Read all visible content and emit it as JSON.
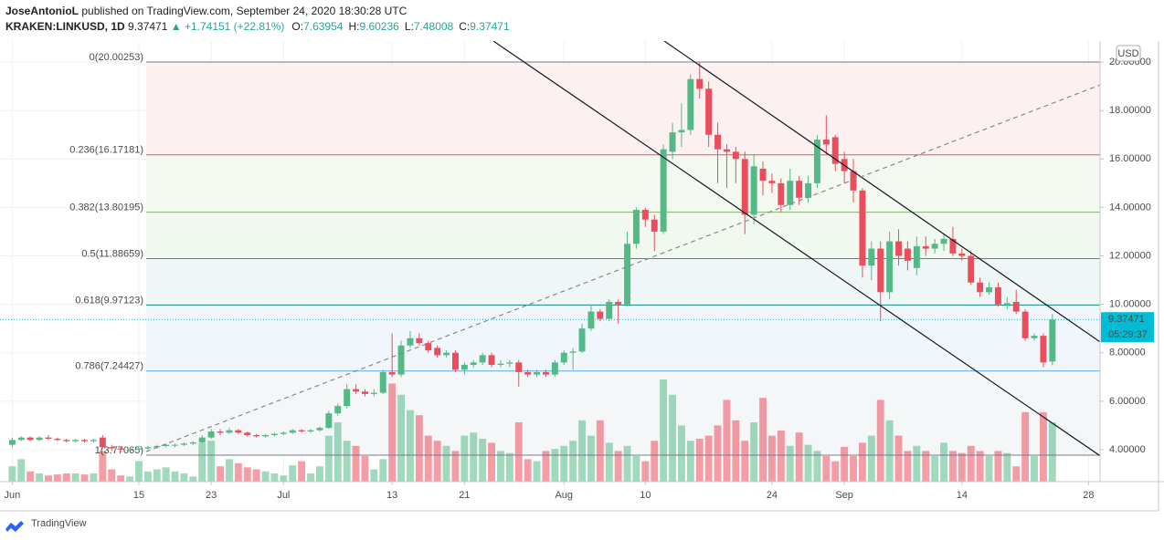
{
  "header": {
    "author": "JoseAntonioL",
    "published": "published on TradingView.com, September 24, 2020 18:30:28 UTC",
    "symbol": "KRAKEN:LINKUSD, 1D",
    "last": "9.37471",
    "change": "▲ +1.74151 (+22.81%)",
    "ohlc": [
      {
        "k": "O:",
        "v": "7.63954"
      },
      {
        "k": "H:",
        "v": "9.60236"
      },
      {
        "k": "L:",
        "v": "7.48008"
      },
      {
        "k": "C:",
        "v": "9.37471"
      }
    ]
  },
  "footer": {
    "brand": "TradingView"
  },
  "chart_data": {
    "type": "candlestick",
    "currency": "USD",
    "xlim": [
      -1.35,
      120.27
    ],
    "ylim": [
      2.68,
      20.87
    ],
    "xticks": [
      {
        "value": 0,
        "label": "Jun"
      },
      {
        "value": 14,
        "label": "15"
      },
      {
        "value": 22,
        "label": "23"
      },
      {
        "value": 30,
        "label": "Jul"
      },
      {
        "value": 42,
        "label": "13"
      },
      {
        "value": 50,
        "label": "21"
      },
      {
        "value": 61,
        "label": "Aug"
      },
      {
        "value": 70,
        "label": "10"
      },
      {
        "value": 84,
        "label": "24"
      },
      {
        "value": 92,
        "label": "Sep"
      },
      {
        "value": 105,
        "label": "14"
      },
      {
        "value": 119,
        "label": "28"
      }
    ],
    "yticks": [
      {
        "value": 4,
        "label": "4.00000"
      },
      {
        "value": 6,
        "label": "6.00000"
      },
      {
        "value": 8,
        "label": "8.00000"
      },
      {
        "value": 10,
        "label": "10.00000"
      },
      {
        "value": 12,
        "label": "12.00000"
      },
      {
        "value": 14,
        "label": "14.00000"
      },
      {
        "value": 16,
        "label": "16.00000"
      },
      {
        "value": 18,
        "label": "18.00000"
      },
      {
        "value": 20,
        "label": "20.00000"
      }
    ],
    "grid": true,
    "up_color": "#53b987",
    "down_color": "#eb4d5c",
    "last_price": {
      "value": 9.37471,
      "label": "9.37471",
      "countdown": "05:29:37",
      "color": "#00bcd4"
    },
    "fib": {
      "levels": [
        {
          "value": 20.00253,
          "label": "0(20.00253)",
          "color": "#787b86"
        },
        {
          "value": 16.17181,
          "label": "0.236(16.17181)",
          "color": "#e0585c"
        },
        {
          "value": 13.80195,
          "label": "0.382(13.80195)",
          "color": "#81b56a"
        },
        {
          "value": 11.88659,
          "label": "0.5(11.88659)",
          "color": "#4a9a3e"
        },
        {
          "value": 9.97123,
          "label": "0.618(9.97123)",
          "color": "#0e8a7c"
        },
        {
          "value": 7.24427,
          "label": "0.786(7.24427)",
          "color": "#5aa9e6"
        },
        {
          "value": 3.77065,
          "label": "1(3.77065)",
          "color": "#787b86"
        }
      ],
      "fills": [
        "#fdf0f0",
        "#f3f9f1",
        "#f1f8ef",
        "#eef7f5",
        "#f0f6fc",
        "#f5f6f8"
      ]
    },
    "trendlines": [
      {
        "points": [
          [
            72.1,
            20.87
          ],
          [
            120.3,
            8.44
          ]
        ],
        "style": "solid",
        "color": "#131722"
      },
      {
        "points": [
          [
            53.2,
            20.87
          ],
          [
            120.3,
            3.74
          ]
        ],
        "style": "solid",
        "color": "#131722"
      },
      {
        "points": [
          [
            14.8,
            3.92
          ],
          [
            120.3,
            19.06
          ]
        ],
        "style": "dashed",
        "color": "#888888"
      }
    ],
    "ohlc": [
      [
        4.2,
        4.5,
        4.1,
        4.4
      ],
      [
        4.4,
        4.55,
        4.35,
        4.5
      ],
      [
        4.5,
        4.55,
        4.35,
        4.4
      ],
      [
        4.4,
        4.55,
        4.35,
        4.5
      ],
      [
        4.5,
        4.6,
        4.4,
        4.45
      ],
      [
        4.45,
        4.5,
        4.35,
        4.4
      ],
      [
        4.4,
        4.45,
        4.3,
        4.35
      ],
      [
        4.35,
        4.45,
        4.3,
        4.4
      ],
      [
        4.4,
        4.45,
        4.3,
        4.35
      ],
      [
        4.35,
        4.45,
        4.3,
        4.4
      ],
      [
        4.5,
        4.6,
        4.05,
        4.1
      ],
      [
        4.1,
        4.2,
        3.95,
        4.05
      ],
      [
        4.05,
        4.1,
        3.9,
        4.0
      ],
      [
        4.0,
        4.1,
        3.95,
        4.0
      ],
      [
        4.0,
        4.15,
        3.95,
        4.05
      ],
      [
        4.05,
        4.15,
        4.0,
        4.1
      ],
      [
        4.1,
        4.2,
        4.05,
        4.15
      ],
      [
        4.15,
        4.25,
        4.1,
        4.2
      ],
      [
        4.2,
        4.25,
        4.1,
        4.2
      ],
      [
        4.2,
        4.3,
        4.15,
        4.25
      ],
      [
        4.25,
        4.35,
        4.2,
        4.3
      ],
      [
        4.3,
        4.6,
        4.25,
        4.5
      ],
      [
        4.5,
        4.85,
        4.45,
        4.75
      ],
      [
        4.75,
        4.85,
        4.6,
        4.7
      ],
      [
        4.7,
        4.9,
        4.65,
        4.8
      ],
      [
        4.8,
        4.85,
        4.65,
        4.7
      ],
      [
        4.7,
        4.75,
        4.55,
        4.6
      ],
      [
        4.6,
        4.65,
        4.5,
        4.55
      ],
      [
        4.55,
        4.65,
        4.5,
        4.6
      ],
      [
        4.6,
        4.7,
        4.55,
        4.65
      ],
      [
        4.65,
        4.75,
        4.6,
        4.7
      ],
      [
        4.7,
        4.85,
        4.65,
        4.8
      ],
      [
        4.8,
        4.85,
        4.7,
        4.75
      ],
      [
        4.75,
        4.85,
        4.7,
        4.8
      ],
      [
        4.8,
        4.95,
        4.75,
        4.9
      ],
      [
        4.9,
        5.6,
        4.85,
        5.5
      ],
      [
        5.5,
        5.9,
        5.4,
        5.8
      ],
      [
        5.8,
        6.7,
        5.7,
        6.5
      ],
      [
        6.5,
        6.7,
        6.3,
        6.4
      ],
      [
        6.4,
        6.5,
        6.2,
        6.3
      ],
      [
        6.3,
        6.5,
        6.2,
        6.35
      ],
      [
        6.35,
        7.3,
        6.3,
        7.2
      ],
      [
        7.2,
        8.8,
        7.0,
        7.1
      ],
      [
        7.1,
        8.5,
        7.0,
        8.3
      ],
      [
        8.3,
        8.9,
        8.2,
        8.6
      ],
      [
        8.6,
        8.8,
        8.3,
        8.4
      ],
      [
        8.4,
        8.5,
        8.0,
        8.1
      ],
      [
        8.2,
        8.3,
        7.8,
        7.9
      ],
      [
        7.9,
        8.1,
        7.8,
        8.0
      ],
      [
        8.0,
        8.1,
        7.2,
        7.3
      ],
      [
        7.3,
        7.6,
        7.1,
        7.5
      ],
      [
        7.5,
        7.7,
        7.4,
        7.6
      ],
      [
        7.6,
        8.0,
        7.5,
        7.9
      ],
      [
        7.9,
        8.0,
        7.4,
        7.5
      ],
      [
        7.5,
        7.7,
        7.4,
        7.55
      ],
      [
        7.55,
        7.7,
        7.4,
        7.6
      ],
      [
        7.6,
        7.7,
        6.6,
        7.2
      ],
      [
        7.2,
        7.3,
        7.0,
        7.1
      ],
      [
        7.1,
        7.3,
        7.0,
        7.2
      ],
      [
        7.2,
        7.3,
        7.0,
        7.1
      ],
      [
        7.1,
        7.7,
        7.0,
        7.6
      ],
      [
        7.6,
        8.1,
        7.5,
        8.0
      ],
      [
        8.0,
        8.2,
        7.3,
        8.05
      ],
      [
        8.05,
        9.2,
        8.0,
        9.0
      ],
      [
        9.0,
        10.0,
        8.9,
        9.7
      ],
      [
        9.7,
        9.8,
        9.3,
        9.4
      ],
      [
        9.4,
        10.2,
        9.3,
        10.1
      ],
      [
        10.1,
        10.2,
        9.2,
        10.0
      ],
      [
        10.0,
        13.0,
        9.9,
        12.5
      ],
      [
        12.5,
        14.0,
        12.3,
        13.9
      ],
      [
        13.9,
        14.0,
        13.2,
        13.5
      ],
      [
        13.5,
        13.7,
        12.2,
        13.0
      ],
      [
        13.0,
        16.6,
        12.9,
        16.4
      ],
      [
        16.3,
        17.5,
        16.0,
        17.1
      ],
      [
        17.1,
        18.3,
        16.5,
        17.2
      ],
      [
        17.2,
        19.5,
        17.0,
        19.3
      ],
      [
        19.3,
        20.0,
        18.5,
        18.9
      ],
      [
        18.9,
        19.2,
        16.5,
        17.0
      ],
      [
        17.0,
        17.5,
        15.0,
        16.4
      ],
      [
        16.4,
        16.6,
        14.8,
        16.3
      ],
      [
        16.3,
        16.5,
        15.0,
        16.0
      ],
      [
        16.0,
        16.3,
        12.9,
        13.7
      ],
      [
        13.7,
        16.2,
        13.3,
        15.7
      ],
      [
        15.6,
        15.9,
        14.5,
        15.1
      ],
      [
        15.1,
        15.4,
        14.6,
        15.0
      ],
      [
        15.0,
        15.2,
        13.8,
        14.1
      ],
      [
        14.1,
        15.6,
        13.9,
        15.1
      ],
      [
        15.1,
        15.3,
        14.1,
        14.4
      ],
      [
        14.4,
        15.3,
        14.2,
        15.0
      ],
      [
        15.0,
        17.0,
        14.8,
        16.8
      ],
      [
        16.8,
        17.8,
        16.2,
        16.6
      ],
      [
        16.9,
        17.0,
        15.5,
        15.8
      ],
      [
        16.0,
        16.3,
        15.0,
        15.5
      ],
      [
        15.5,
        16.0,
        14.2,
        14.7
      ],
      [
        14.7,
        14.8,
        11.1,
        11.6
      ],
      [
        11.6,
        12.6,
        11.0,
        12.3
      ],
      [
        12.3,
        12.6,
        9.3,
        10.5
      ],
      [
        10.5,
        13.0,
        10.2,
        12.6
      ],
      [
        12.6,
        13.1,
        11.6,
        12.0
      ],
      [
        12.3,
        12.6,
        11.4,
        11.8
      ],
      [
        11.5,
        12.8,
        11.2,
        12.4
      ],
      [
        12.4,
        12.8,
        12.0,
        12.3
      ],
      [
        12.3,
        12.7,
        12.1,
        12.5
      ],
      [
        12.5,
        12.9,
        12.2,
        12.7
      ],
      [
        12.7,
        13.2,
        12.0,
        12.1
      ],
      [
        12.1,
        12.3,
        11.8,
        12.0
      ],
      [
        12.0,
        12.2,
        10.8,
        10.9
      ],
      [
        10.9,
        11.1,
        10.3,
        10.5
      ],
      [
        10.5,
        10.9,
        10.4,
        10.7
      ],
      [
        10.7,
        10.9,
        9.9,
        10.0
      ],
      [
        10.0,
        10.3,
        9.8,
        10.05
      ],
      [
        10.1,
        10.6,
        9.6,
        9.7
      ],
      [
        9.7,
        9.8,
        8.5,
        8.6
      ],
      [
        8.6,
        8.8,
        8.5,
        8.7
      ],
      [
        8.7,
        8.8,
        7.4,
        7.6
      ],
      [
        7.63954,
        9.60236,
        7.48008,
        9.37471
      ]
    ],
    "volume": [
      15,
      22,
      10,
      8,
      6,
      7,
      8,
      8,
      7,
      8,
      30,
      12,
      6,
      5,
      20,
      10,
      12,
      14,
      10,
      8,
      5,
      38,
      40,
      15,
      22,
      18,
      14,
      12,
      10,
      8,
      6,
      16,
      20,
      8,
      15,
      45,
      58,
      40,
      35,
      25,
      12,
      22,
      96,
      85,
      70,
      65,
      45,
      40,
      35,
      30,
      45,
      48,
      42,
      38,
      30,
      28,
      58,
      22,
      20,
      30,
      32,
      35,
      40,
      60,
      45,
      60,
      38,
      30,
      35,
      25,
      20,
      40,
      100,
      85,
      55,
      40,
      42,
      45,
      55,
      80,
      60,
      40,
      58,
      82,
      45,
      50,
      35,
      48,
      36,
      30,
      25,
      20,
      34,
      25,
      38,
      45,
      80,
      60,
      45,
      30,
      35,
      30,
      25,
      38,
      30,
      28,
      35,
      30,
      25,
      30,
      28,
      15,
      68,
      25,
      68,
      58
    ]
  }
}
